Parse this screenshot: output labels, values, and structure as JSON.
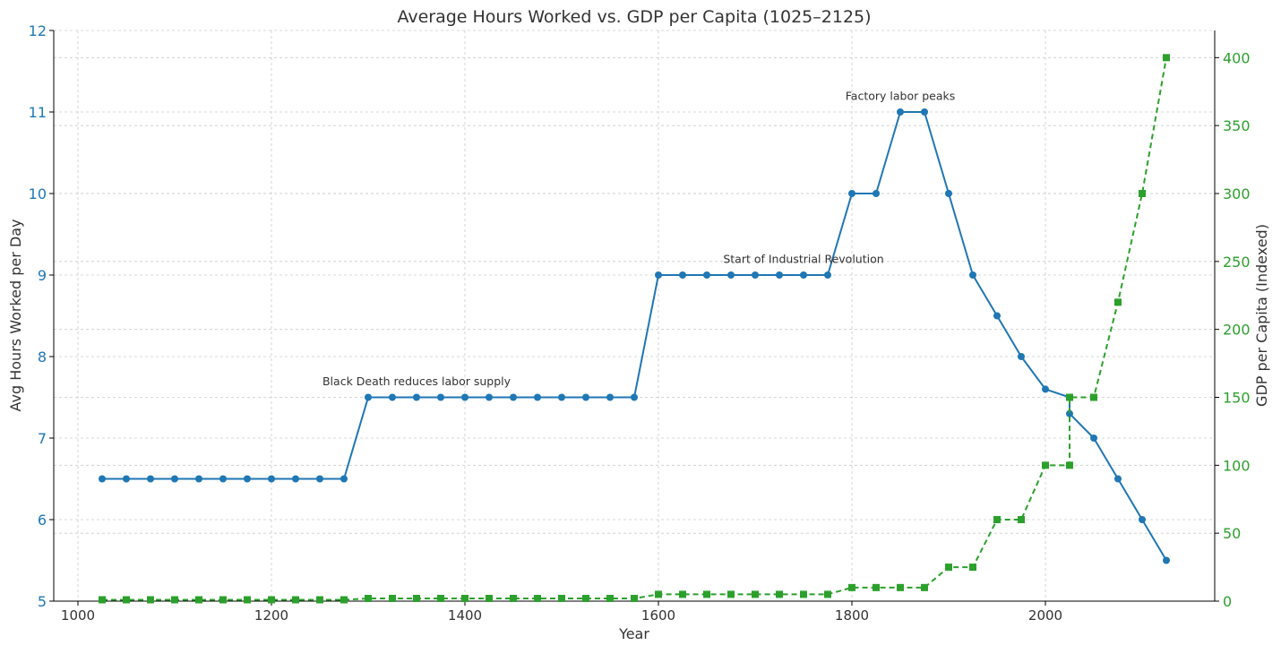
{
  "chart_data": {
    "type": "line",
    "title": "Average Hours Worked vs. GDP per Capita (1025–2125)",
    "xlabel": "Year",
    "ylabel_left": "Avg Hours Worked per Day",
    "ylabel_right": "GDP per Capita (Indexed)",
    "xlim": [
      975,
      2175
    ],
    "ylim_left": [
      5,
      12
    ],
    "ylim_right": [
      0,
      420
    ],
    "x_ticks": [
      1000,
      1200,
      1400,
      1600,
      1800,
      2000
    ],
    "y_ticks_left": [
      5,
      6,
      7,
      8,
      9,
      10,
      11,
      12
    ],
    "y_ticks_right": [
      0,
      50,
      100,
      150,
      200,
      250,
      300,
      350,
      400
    ],
    "grid": true,
    "colors": {
      "hours": "#1f77b4",
      "gdp": "#2ca02c"
    },
    "series": [
      {
        "axis": "left",
        "marker": "circle",
        "linestyle": "solid",
        "color": "#1f77b4",
        "x": [
          1025,
          1050,
          1075,
          1100,
          1125,
          1150,
          1175,
          1200,
          1225,
          1250,
          1275,
          1300,
          1325,
          1350,
          1375,
          1400,
          1425,
          1450,
          1475,
          1500,
          1525,
          1550,
          1575,
          1600,
          1625,
          1650,
          1675,
          1700,
          1725,
          1750,
          1775,
          1800,
          1825,
          1850,
          1875,
          1900,
          1925,
          1950,
          1975,
          2000,
          2025,
          2025,
          2050,
          2075,
          2100,
          2125
        ],
        "values": [
          6.5,
          6.5,
          6.5,
          6.5,
          6.5,
          6.5,
          6.5,
          6.5,
          6.5,
          6.5,
          6.5,
          7.5,
          7.5,
          7.5,
          7.5,
          7.5,
          7.5,
          7.5,
          7.5,
          7.5,
          7.5,
          7.5,
          7.5,
          9,
          9,
          9,
          9,
          9,
          9,
          9,
          9,
          10,
          10,
          11,
          11,
          10,
          9,
          8.5,
          8,
          7.6,
          7.5,
          7.3,
          7,
          6.5,
          6,
          5.5
        ]
      },
      {
        "axis": "right",
        "marker": "square",
        "linestyle": "dashed",
        "color": "#2ca02c",
        "x": [
          1025,
          1050,
          1075,
          1100,
          1125,
          1150,
          1175,
          1200,
          1225,
          1250,
          1275,
          1300,
          1325,
          1350,
          1375,
          1400,
          1425,
          1450,
          1475,
          1500,
          1525,
          1550,
          1575,
          1600,
          1625,
          1650,
          1675,
          1700,
          1725,
          1750,
          1775,
          1800,
          1825,
          1850,
          1875,
          1900,
          1925,
          1950,
          1975,
          2000,
          2025,
          2025,
          2050,
          2075,
          2100,
          2125
        ],
        "values": [
          1,
          1,
          1,
          1,
          1,
          1,
          1,
          1,
          1,
          1,
          1,
          2,
          2,
          2,
          2,
          2,
          2,
          2,
          2,
          2,
          2,
          2,
          2,
          5,
          5,
          5,
          5,
          5,
          5,
          5,
          5,
          10,
          10,
          10,
          10,
          25,
          25,
          60,
          60,
          100,
          100,
          150,
          150,
          220,
          300,
          400
        ]
      }
    ],
    "annotations": [
      {
        "text": "Black Death reduces labor supply",
        "x": 1350,
        "y": 7.65
      },
      {
        "text": "Start of Industrial Revolution",
        "x": 1750,
        "y": 9.15
      },
      {
        "text": "Factory labor peaks",
        "x": 1850,
        "y": 11.15
      }
    ]
  }
}
